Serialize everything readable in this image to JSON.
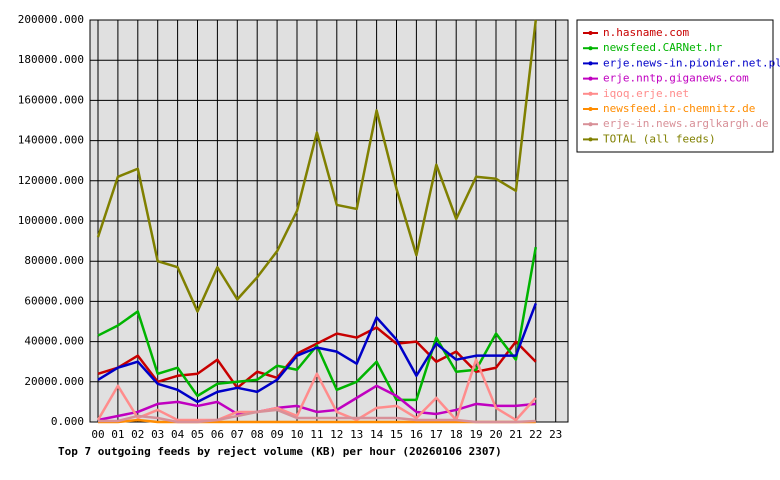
{
  "chart_data": {
    "type": "line",
    "title": "Top 7 outgoing feeds by reject volume (KB) per hour (20260106 2307)",
    "categories": [
      "00",
      "01",
      "02",
      "03",
      "04",
      "05",
      "06",
      "07",
      "08",
      "09",
      "10",
      "11",
      "12",
      "13",
      "14",
      "15",
      "16",
      "17",
      "18",
      "19",
      "20",
      "21",
      "22",
      "23"
    ],
    "ylim": [
      0,
      200000
    ],
    "yticks": [
      {
        "value": 0,
        "label": "0.000"
      },
      {
        "value": 20000,
        "label": "20000.000"
      },
      {
        "value": 40000,
        "label": "40000.000"
      },
      {
        "value": 60000,
        "label": "60000.000"
      },
      {
        "value": 80000,
        "label": "80000.000"
      },
      {
        "value": 100000,
        "label": "100000.000"
      },
      {
        "value": 120000,
        "label": "120000.000"
      },
      {
        "value": 140000,
        "label": "140000.000"
      },
      {
        "value": 160000,
        "label": "160000.000"
      },
      {
        "value": 180000,
        "label": "180000.000"
      },
      {
        "value": 200000,
        "label": "200000.000"
      }
    ],
    "grid": true,
    "legend": "right",
    "series": [
      {
        "name": "n.hasname.com",
        "color": "#c80000",
        "values": [
          24000,
          27000,
          33000,
          20000,
          23000,
          24000,
          31000,
          17000,
          25000,
          22000,
          34000,
          39000,
          44000,
          42000,
          47000,
          39000,
          40000,
          30000,
          35000,
          25000,
          27000,
          40000,
          30000,
          null
        ]
      },
      {
        "name": "newsfeed.CARNet.hr",
        "color": "#00b400",
        "values": [
          43000,
          48000,
          55000,
          24000,
          27000,
          13000,
          19000,
          20000,
          21000,
          28000,
          26000,
          38000,
          16000,
          20000,
          30000,
          11000,
          11000,
          42000,
          25000,
          26000,
          44000,
          31000,
          87000,
          null
        ]
      },
      {
        "name": "erje.news-in.pionier.net.pl",
        "color": "#0000c8",
        "values": [
          21000,
          27000,
          30000,
          19000,
          16000,
          10000,
          15000,
          17000,
          15000,
          21000,
          33000,
          37000,
          35000,
          29000,
          52000,
          41000,
          23000,
          39000,
          31000,
          33000,
          33000,
          33000,
          59000,
          null
        ]
      },
      {
        "name": "erje.nntp.giganews.com",
        "color": "#c000c0",
        "values": [
          1000,
          3000,
          5000,
          9000,
          10000,
          8000,
          10000,
          4000,
          5000,
          7000,
          8000,
          5000,
          6000,
          12000,
          18000,
          13000,
          5000,
          4000,
          6000,
          9000,
          8000,
          8000,
          9000,
          null
        ]
      },
      {
        "name": "iqoq.erje.net",
        "color": "#ff8c8c",
        "values": [
          1000,
          18000,
          2000,
          6000,
          1000,
          1000,
          1000,
          5000,
          5000,
          7000,
          3000,
          24000,
          5000,
          1000,
          7000,
          8000,
          2000,
          12000,
          1000,
          31000,
          7000,
          1000,
          12000,
          null
        ]
      },
      {
        "name": "newsfeed.in-chemnitz.de",
        "color": "#ff8c00",
        "values": [
          0,
          0,
          1000,
          0,
          0,
          0,
          0,
          0,
          0,
          0,
          0,
          0,
          0,
          0,
          0,
          0,
          0,
          0,
          0,
          0,
          0,
          0,
          0,
          null
        ]
      },
      {
        "name": "erje-in.news.arglkargh.de",
        "color": "#d89098",
        "values": [
          500,
          500,
          3000,
          2000,
          0,
          0,
          1000,
          3000,
          5000,
          6000,
          2000,
          2000,
          2000,
          2000,
          2000,
          2000,
          1000,
          1000,
          1000,
          0,
          0,
          0,
          500,
          null
        ]
      },
      {
        "name": "TOTAL (all feeds)",
        "color": "#808000",
        "values": [
          92000,
          122000,
          126000,
          80000,
          77000,
          55000,
          77000,
          61000,
          72000,
          85000,
          105000,
          144000,
          108000,
          106000,
          155000,
          116000,
          83000,
          128000,
          101000,
          122000,
          121000,
          115000,
          200000,
          null
        ]
      }
    ]
  }
}
